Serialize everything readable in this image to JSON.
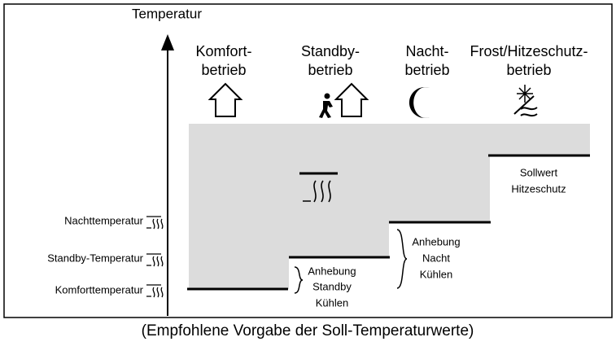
{
  "axis_label": "Temperatur",
  "modes": [
    {
      "lines": [
        "Komfort-",
        "betrieb"
      ]
    },
    {
      "lines": [
        "Standby-",
        "betrieb"
      ]
    },
    {
      "lines": [
        "Nacht-",
        "betrieb"
      ]
    },
    {
      "lines": [
        "Frost/Hitzeschutz-",
        "betrieb"
      ]
    }
  ],
  "levels": [
    "Nachttemperatur",
    "Standby-Temperatur",
    "Komforttemperatur"
  ],
  "hitzeschutz_note": [
    "Sollwert",
    "Hitzeschutz"
  ],
  "standby_note": [
    "Anhebung",
    "Standby",
    "Kühlen"
  ],
  "nacht_note": [
    "Anhebung",
    "Nacht",
    "Kühlen"
  ],
  "caption": "(Empfohlene Vorgabe der Soll-Temperaturwerte)"
}
